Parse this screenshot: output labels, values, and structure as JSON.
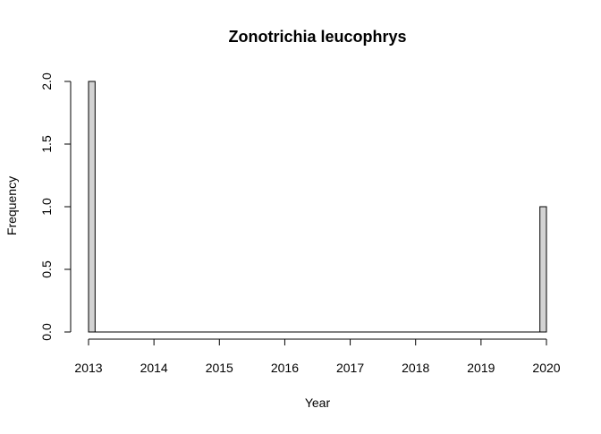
{
  "chart_data": {
    "type": "bar",
    "title": "Zonotrichia leucophrys",
    "xlabel": "Year",
    "ylabel": "Frequency",
    "x_ticks": [
      "2013",
      "2014",
      "2015",
      "2016",
      "2017",
      "2018",
      "2019",
      "2020"
    ],
    "y_ticks": [
      "0.0",
      "0.5",
      "1.0",
      "1.5",
      "2.0"
    ],
    "xlim": [
      2013,
      2020
    ],
    "ylim": [
      0,
      2
    ],
    "bin_width": 0.1,
    "bins": [
      {
        "x0": 2013.0,
        "x1": 2013.1,
        "value": 2
      },
      {
        "x0": 2019.9,
        "x1": 2020.0,
        "value": 1
      }
    ],
    "bar_fill": "#d3d3d3",
    "bar_stroke": "#000000",
    "grid": false,
    "legend": "none"
  }
}
